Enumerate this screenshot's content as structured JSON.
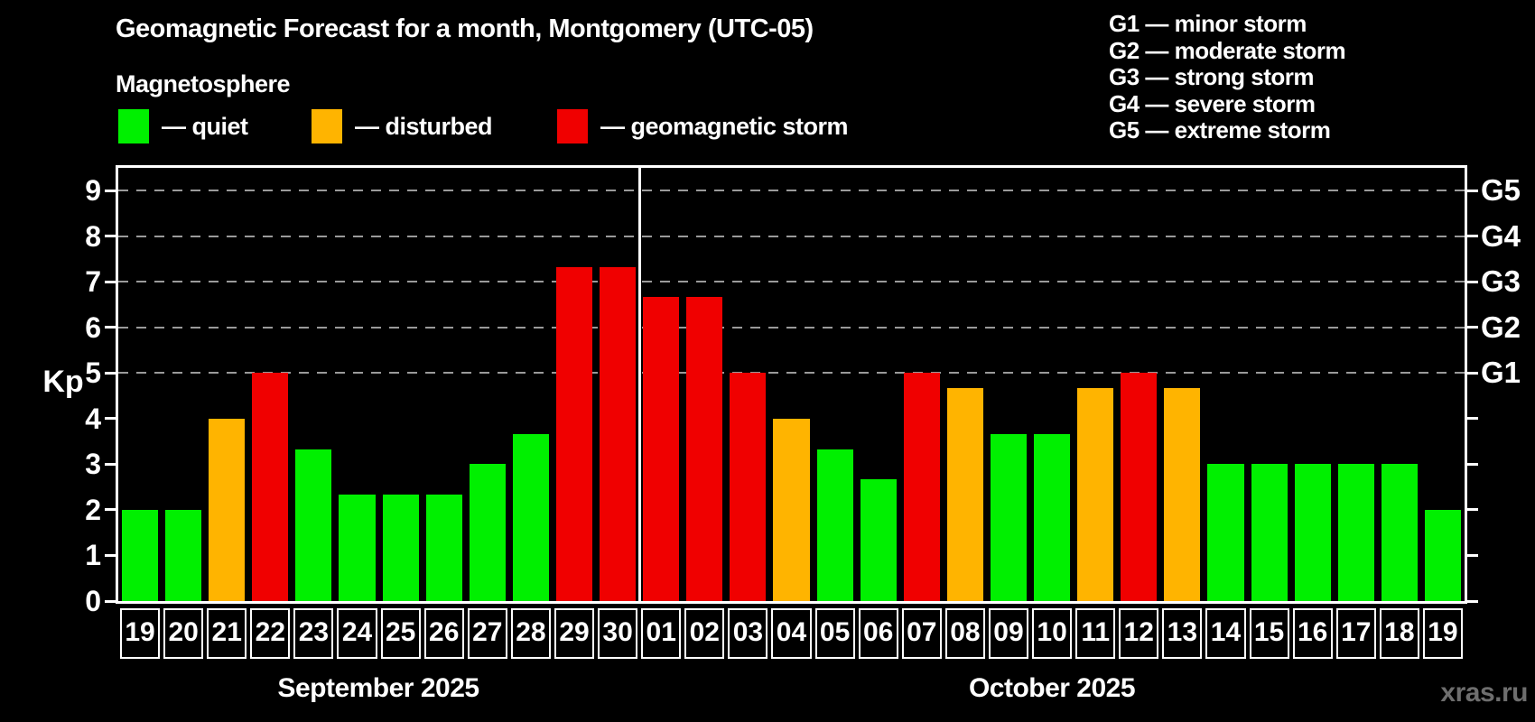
{
  "header": {
    "title": "Geomagnetic Forecast for a month, Montgomery (UTC-05)",
    "subtitle": "Magnetosphere"
  },
  "legend": {
    "items": [
      {
        "name": "quiet",
        "label": "— quiet",
        "color": "#00f000"
      },
      {
        "name": "disturbed",
        "label": "— disturbed",
        "color": "#ffb400"
      },
      {
        "name": "geomagnetic-storm",
        "label": "— geomagnetic storm",
        "color": "#f00000"
      }
    ]
  },
  "g_legend": [
    "G1 — minor storm",
    "G2 — moderate storm",
    "G3 — strong storm",
    "G4 — severe storm",
    "G5 — extreme storm"
  ],
  "watermark": "xras.ru",
  "chart_data": {
    "type": "bar",
    "title": "Geomagnetic Forecast for a month, Montgomery (UTC-05)",
    "ylabel": "Kp",
    "ylim": [
      0,
      9.5
    ],
    "yticks": [
      0,
      1,
      2,
      3,
      4,
      5,
      6,
      7,
      8,
      9
    ],
    "grid": "dashed horizontal lines at storm levels only",
    "g_levels": [
      {
        "kp": 5,
        "label": "G1"
      },
      {
        "kp": 6,
        "label": "G2"
      },
      {
        "kp": 7,
        "label": "G3"
      },
      {
        "kp": 8,
        "label": "G4"
      },
      {
        "kp": 9,
        "label": "G5"
      }
    ],
    "colors": {
      "quiet": "#00f000",
      "disturbed": "#ffb400",
      "storm": "#f00000"
    },
    "months": [
      {
        "label": "September 2025",
        "days": [
          {
            "day": "19",
            "kp": 2.0,
            "status": "quiet"
          },
          {
            "day": "20",
            "kp": 2.0,
            "status": "quiet"
          },
          {
            "day": "21",
            "kp": 4.0,
            "status": "disturbed"
          },
          {
            "day": "22",
            "kp": 5.0,
            "status": "storm"
          },
          {
            "day": "23",
            "kp": 3.33,
            "status": "quiet"
          },
          {
            "day": "24",
            "kp": 2.33,
            "status": "quiet"
          },
          {
            "day": "25",
            "kp": 2.33,
            "status": "quiet"
          },
          {
            "day": "26",
            "kp": 2.33,
            "status": "quiet"
          },
          {
            "day": "27",
            "kp": 3.0,
            "status": "quiet"
          },
          {
            "day": "28",
            "kp": 3.67,
            "status": "quiet"
          },
          {
            "day": "29",
            "kp": 7.33,
            "status": "storm"
          },
          {
            "day": "30",
            "kp": 7.33,
            "status": "storm"
          }
        ]
      },
      {
        "label": "October 2025",
        "days": [
          {
            "day": "01",
            "kp": 6.67,
            "status": "storm"
          },
          {
            "day": "02",
            "kp": 6.67,
            "status": "storm"
          },
          {
            "day": "03",
            "kp": 5.0,
            "status": "storm"
          },
          {
            "day": "04",
            "kp": 4.0,
            "status": "disturbed"
          },
          {
            "day": "05",
            "kp": 3.33,
            "status": "quiet"
          },
          {
            "day": "06",
            "kp": 2.67,
            "status": "quiet"
          },
          {
            "day": "07",
            "kp": 5.0,
            "status": "storm"
          },
          {
            "day": "08",
            "kp": 4.67,
            "status": "disturbed"
          },
          {
            "day": "09",
            "kp": 3.67,
            "status": "quiet"
          },
          {
            "day": "10",
            "kp": 3.67,
            "status": "quiet"
          },
          {
            "day": "11",
            "kp": 4.67,
            "status": "disturbed"
          },
          {
            "day": "12",
            "kp": 5.0,
            "status": "storm"
          },
          {
            "day": "13",
            "kp": 4.67,
            "status": "disturbed"
          },
          {
            "day": "14",
            "kp": 3.0,
            "status": "quiet"
          },
          {
            "day": "15",
            "kp": 3.0,
            "status": "quiet"
          },
          {
            "day": "16",
            "kp": 3.0,
            "status": "quiet"
          },
          {
            "day": "17",
            "kp": 3.0,
            "status": "quiet"
          },
          {
            "day": "18",
            "kp": 3.0,
            "status": "quiet"
          },
          {
            "day": "19",
            "kp": 2.0,
            "status": "quiet"
          }
        ]
      }
    ]
  }
}
